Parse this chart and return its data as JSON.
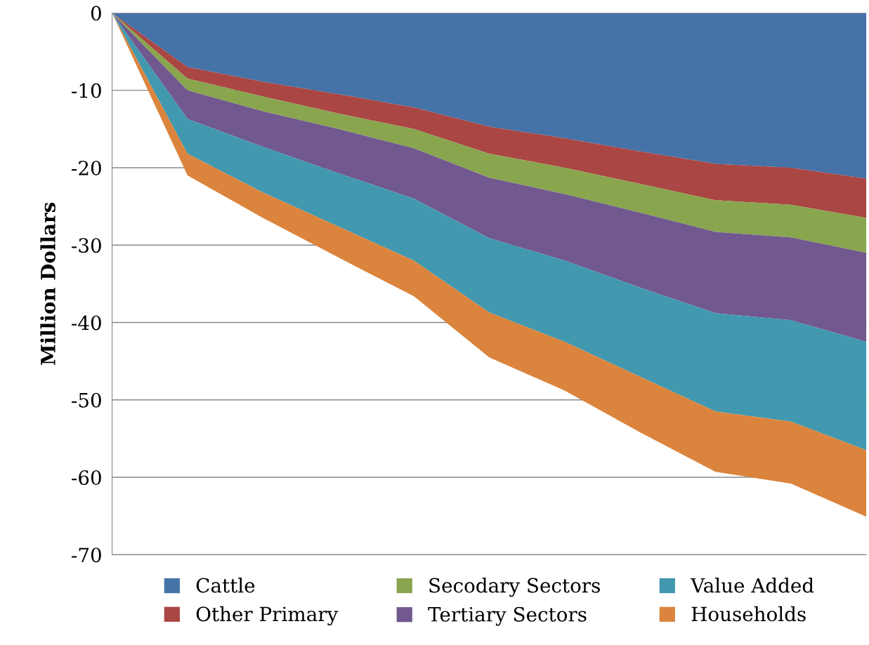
{
  "chart_data": {
    "type": "area",
    "stacked": true,
    "ylabel": "Million Dollars",
    "categories": [
      null,
      null,
      null,
      null,
      null,
      null,
      null,
      null,
      null,
      null,
      null
    ],
    "series": [
      {
        "name": "Cattle",
        "color": "#4572a7",
        "values": [
          0,
          -7.0,
          -8.9,
          -10.5,
          -12.2,
          -14.7,
          -16.2,
          -17.9,
          -19.5,
          -20.0,
          -21.4
        ]
      },
      {
        "name": "Other Primary",
        "color": "#aa4643",
        "values": [
          0,
          -1.5,
          -1.9,
          -2.5,
          -2.8,
          -3.5,
          -3.8,
          -4.2,
          -4.7,
          -4.8,
          -5.1
        ]
      },
      {
        "name": "Secodary Sectors",
        "color": "#89a54e",
        "values": [
          0,
          -1.5,
          -1.9,
          -2.0,
          -2.5,
          -3.1,
          -3.4,
          -3.7,
          -4.1,
          -4.2,
          -4.5
        ]
      },
      {
        "name": "Tertiary Sectors",
        "color": "#71588f",
        "values": [
          0,
          -3.7,
          -4.6,
          -5.7,
          -6.5,
          -7.8,
          -8.6,
          -9.7,
          -10.5,
          -10.7,
          -11.5
        ]
      },
      {
        "name": "Value Added",
        "color": "#4198af",
        "values": [
          0,
          -4.5,
          -5.9,
          -6.9,
          -8.0,
          -9.6,
          -10.5,
          -11.5,
          -12.7,
          -13.1,
          -14.0
        ]
      },
      {
        "name": "Households",
        "color": "#db843d",
        "values": [
          0,
          -2.8,
          -3.3,
          -4.0,
          -4.6,
          -5.8,
          -6.3,
          -7.2,
          -7.8,
          -8.0,
          -8.6
        ]
      }
    ],
    "ylim": [
      -70,
      0
    ],
    "yticks": [
      -70,
      -60,
      -50,
      -40,
      -30,
      -20,
      -10,
      0
    ],
    "grid": "y",
    "legend": "bottom"
  }
}
